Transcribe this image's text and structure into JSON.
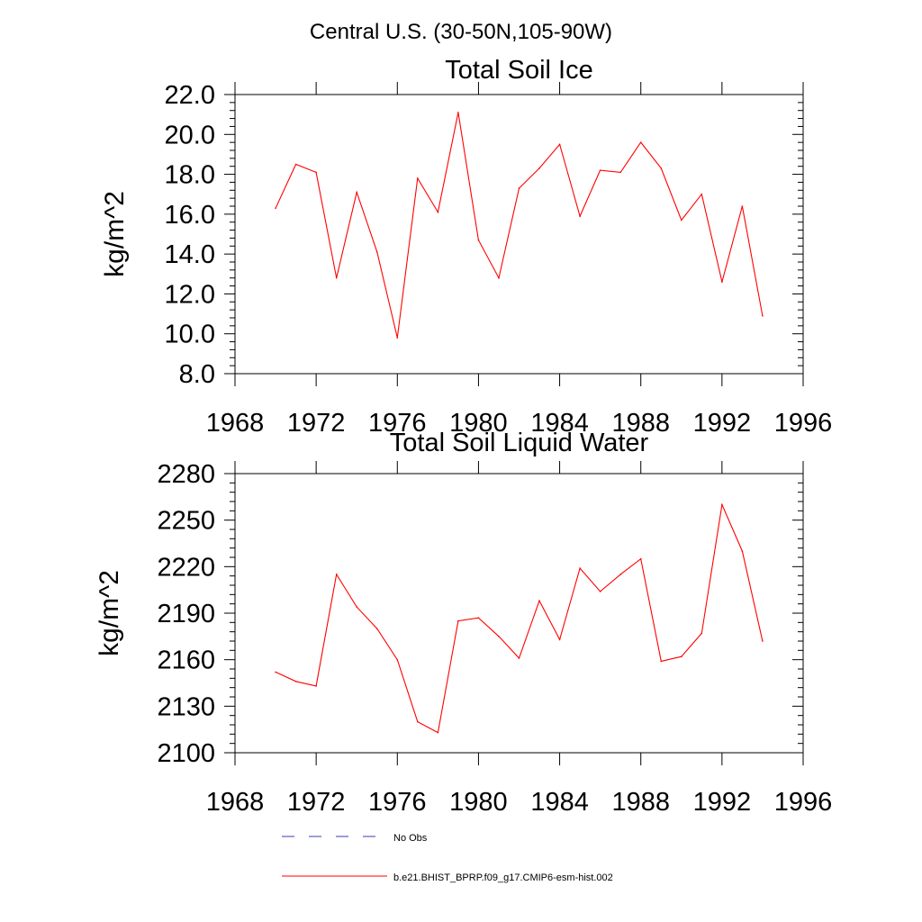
{
  "figure": {
    "suptitle": "Central U.S. (30-50N,105-90W)"
  },
  "legend": {
    "entries": [
      {
        "label": "No Obs",
        "color": "#3b3bb3",
        "style": "dashed"
      },
      {
        "label": "b.e21.BHIST_BPRP.f09_g17.CMIP6-esm-hist.002",
        "color": "#ff0000",
        "style": "solid"
      }
    ]
  },
  "chart_data": [
    {
      "type": "line",
      "title": "Total Soil Ice",
      "xlabel": "",
      "ylabel": "kg/m^2",
      "xlim": [
        1968,
        1996
      ],
      "ylim": [
        8,
        22
      ],
      "xticks": [
        1968,
        1972,
        1976,
        1980,
        1984,
        1988,
        1992,
        1996
      ],
      "xtick_labels": [
        "1968",
        "1972",
        "1976",
        "1980",
        "1984",
        "1988",
        "1992",
        "1996"
      ],
      "yticks": [
        8,
        10,
        12,
        14,
        16,
        18,
        20,
        22
      ],
      "ytick_labels": [
        "8.0",
        "10.0",
        "12.0",
        "14.0",
        "16.0",
        "18.0",
        "20.0",
        "22.0"
      ],
      "grid": false,
      "series": [
        {
          "name": "b.e21.BHIST_BPRP.f09_g17.CMIP6-esm-hist.002",
          "color": "#ff0000",
          "x": [
            1970,
            1971,
            1972,
            1973,
            1974,
            1975,
            1976,
            1977,
            1978,
            1979,
            1980,
            1981,
            1982,
            1983,
            1984,
            1985,
            1986,
            1987,
            1988,
            1989,
            1990,
            1991,
            1992,
            1993,
            1994
          ],
          "y": [
            16.3,
            18.5,
            18.1,
            12.8,
            17.1,
            14.1,
            9.8,
            17.8,
            16.1,
            21.1,
            14.7,
            12.8,
            17.3,
            18.3,
            19.5,
            15.9,
            18.2,
            18.1,
            19.6,
            18.3,
            15.7,
            17.0,
            12.6,
            16.4,
            10.9
          ]
        }
      ]
    },
    {
      "type": "line",
      "title": "Total Soil Liquid Water",
      "xlabel": "",
      "ylabel": "kg/m^2",
      "xlim": [
        1968,
        1996
      ],
      "ylim": [
        2100,
        2280
      ],
      "xticks": [
        1968,
        1972,
        1976,
        1980,
        1984,
        1988,
        1992,
        1996
      ],
      "xtick_labels": [
        "1968",
        "1972",
        "1976",
        "1980",
        "1984",
        "1988",
        "1992",
        "1996"
      ],
      "yticks": [
        2100,
        2130,
        2160,
        2190,
        2220,
        2250,
        2280
      ],
      "ytick_labels": [
        "2100",
        "2130",
        "2160",
        "2190",
        "2220",
        "2250",
        "2280"
      ],
      "grid": false,
      "series": [
        {
          "name": "b.e21.BHIST_BPRP.f09_g17.CMIP6-esm-hist.002",
          "color": "#ff0000",
          "x": [
            1970,
            1971,
            1972,
            1973,
            1974,
            1975,
            1976,
            1977,
            1978,
            1979,
            1980,
            1981,
            1982,
            1983,
            1984,
            1985,
            1986,
            1987,
            1988,
            1989,
            1990,
            1991,
            1992,
            1993,
            1994
          ],
          "y": [
            2152,
            2146,
            2143,
            2215,
            2194,
            2180,
            2160,
            2120,
            2113,
            2185,
            2187,
            2175,
            2161,
            2198,
            2173,
            2219,
            2204,
            2215,
            2225,
            2159,
            2162,
            2177,
            2260,
            2230,
            2172
          ]
        }
      ]
    }
  ]
}
